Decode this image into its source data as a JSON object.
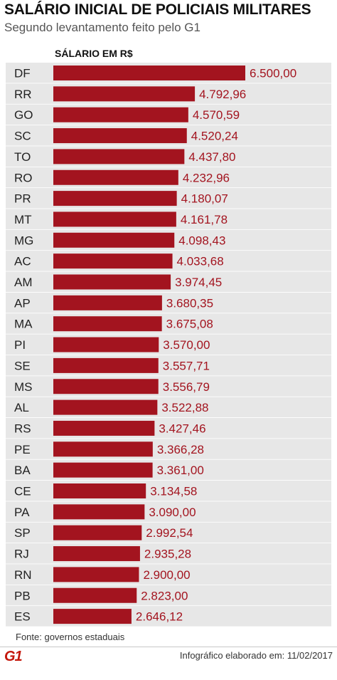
{
  "header": {
    "title": "SALÁRIO INICIAL DE POLICIAIS MILITARES",
    "subtitle": "Segundo levantamento feito pelo G1"
  },
  "chart_data": {
    "type": "bar",
    "orientation": "horizontal",
    "column_label": "SÁLARIO EM R$",
    "categories": [
      "DF",
      "RR",
      "GO",
      "SC",
      "TO",
      "RO",
      "PR",
      "MT",
      "MG",
      "AC",
      "AM",
      "AP",
      "MA",
      "PI",
      "SE",
      "MS",
      "AL",
      "RS",
      "PE",
      "BA",
      "CE",
      "PA",
      "SP",
      "RJ",
      "RN",
      "PB",
      "ES"
    ],
    "values": [
      6500.0,
      4792.96,
      4570.59,
      4520.24,
      4437.8,
      4232.96,
      4180.07,
      4161.78,
      4098.43,
      4033.68,
      3974.45,
      3680.35,
      3675.08,
      3570.0,
      3557.71,
      3556.79,
      3522.88,
      3427.46,
      3366.28,
      3361.0,
      3134.58,
      3090.0,
      2992.54,
      2935.28,
      2900.0,
      2823.0,
      2646.12
    ],
    "value_labels": [
      "6.500,00",
      "4.792,96",
      "4.570,59",
      "4.520,24",
      "4.437,80",
      "4.232,96",
      "4.180,07",
      "4.161,78",
      "4.098,43",
      "4.033,68",
      "3.974,45",
      "3.680,35",
      "3.675,08",
      "3.570,00",
      "3.557,71",
      "3.556,79",
      "3.522,88",
      "3.427,46",
      "3.366,28",
      "3.361,00",
      "3.134,58",
      "3.090,00",
      "2.992,54",
      "2.935,28",
      "2.900,00",
      "2.823,00",
      "2.646,12"
    ],
    "xlim": [
      0,
      6500
    ],
    "colors": {
      "bar": "#a3141f",
      "row_band": "#e7e7e7"
    },
    "grid": false,
    "legend": "none"
  },
  "footer": {
    "source": "Fonte: governos estaduais",
    "logo": "G1",
    "credit": "Infográfico elaborado em: 11/02/2017"
  }
}
